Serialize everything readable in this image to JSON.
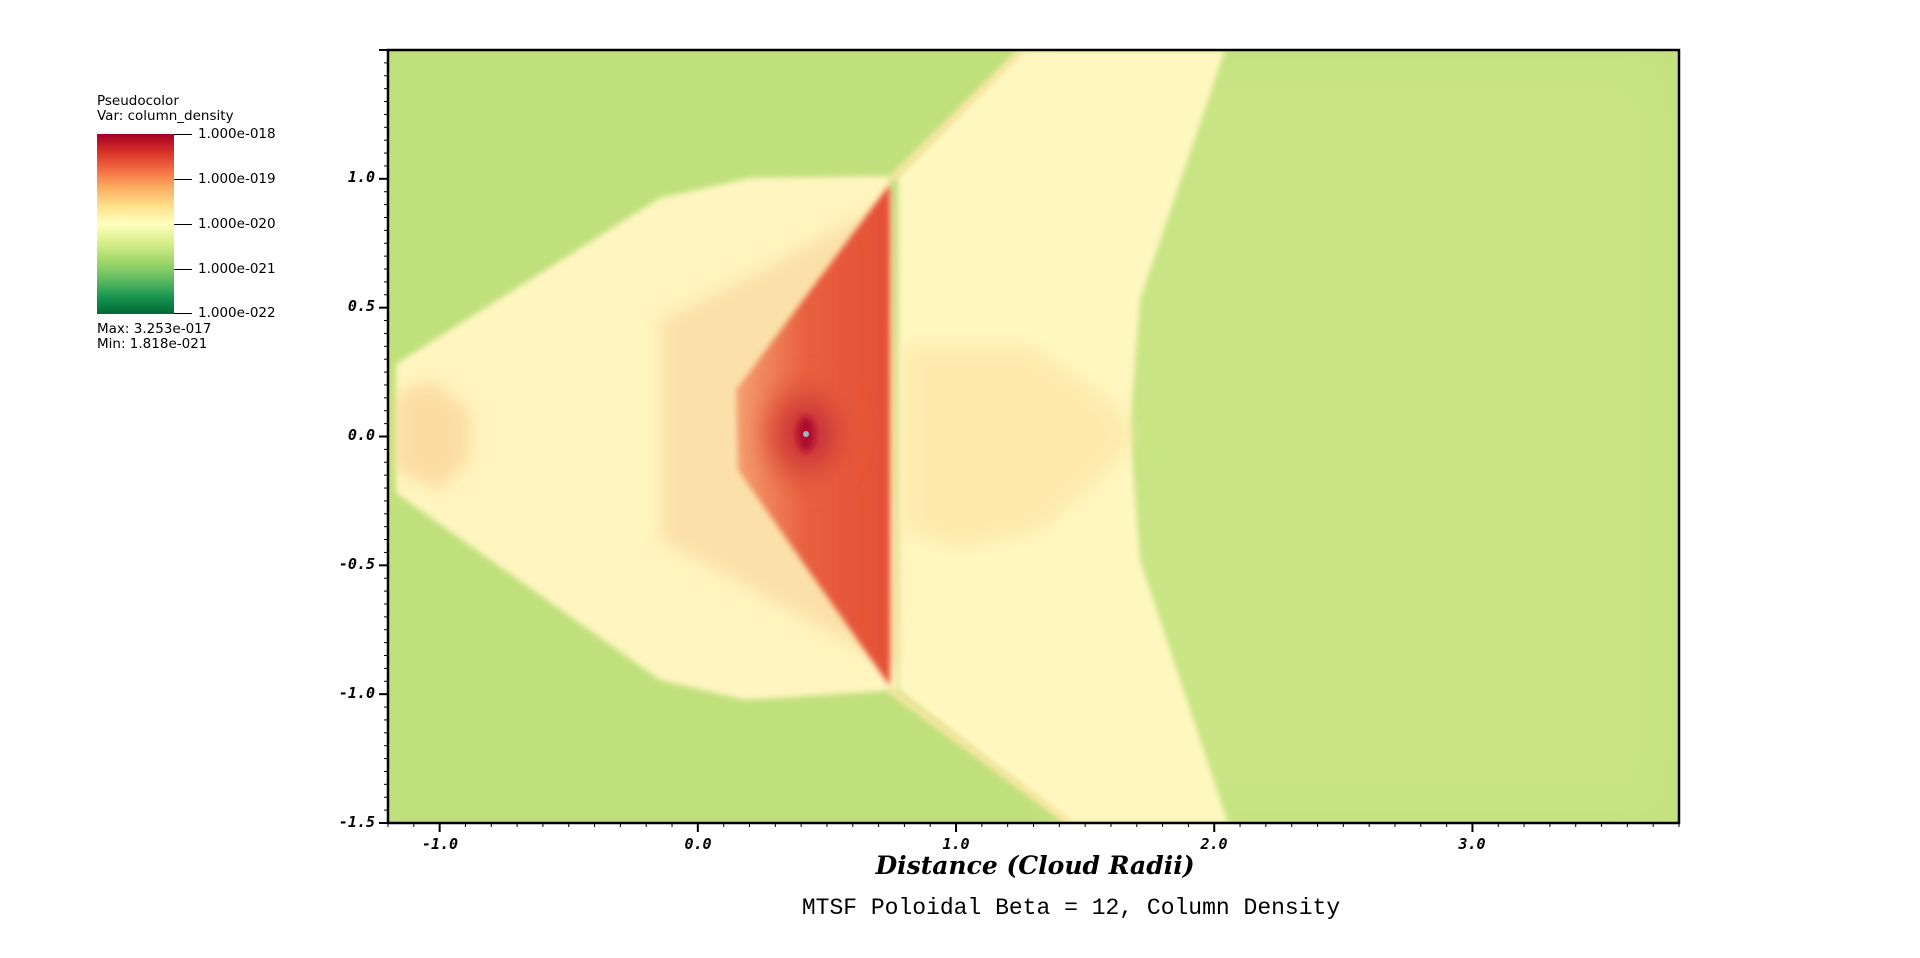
{
  "legend": {
    "plot_type": "Pseudocolor",
    "variable_line": "Var: column_density",
    "max_line": "Max:  3.253e-017",
    "min_line": "Min:  1.818e-021",
    "ticks": [
      "1.000e-018",
      "1.000e-019",
      "1.000e-020",
      "1.000e-021",
      "1.000e-022"
    ],
    "colormap": [
      "#a50026",
      "#d73027",
      "#f46d43",
      "#fdae61",
      "#fee08b",
      "#ffffbf",
      "#d9ef8b",
      "#a6d96a",
      "#66bd63",
      "#1a9850",
      "#006837"
    ]
  },
  "chart_data": {
    "type": "heatmap",
    "title": "MTSF Poloidal Beta = 12, Column Density",
    "xlabel": "Distance (Cloud Radii)",
    "ylabel": "",
    "xlim": [
      -1.2,
      3.8
    ],
    "ylim": [
      -1.5,
      1.5
    ],
    "x_ticks": [
      "-1.0",
      "0.0",
      "1.0",
      "2.0",
      "3.0"
    ],
    "x_tick_values": [
      -1.0,
      0.0,
      1.0,
      2.0,
      3.0
    ],
    "y_ticks": [
      "1.0",
      "0.5",
      "0.0",
      "-0.5",
      "-1.0",
      "-1.5"
    ],
    "y_tick_values": [
      1.0,
      0.5,
      0.0,
      -0.5,
      -1.0,
      -1.5
    ],
    "variable": "column_density",
    "value_max": 3.253e-17,
    "value_min": 1.818e-21,
    "colors": {
      "background": "#c0e07c",
      "shell": "#fff9c4",
      "dense_core": "#e8603f",
      "peak": "#b0102e",
      "core_point": "#9ab8c0"
    }
  }
}
